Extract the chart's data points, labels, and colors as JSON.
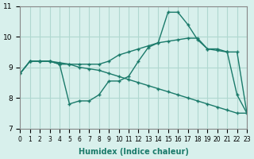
{
  "xlabel": "Humidex (Indice chaleur)",
  "ylabel": "",
  "bg_color": "#d8f0ec",
  "grid_color": "#b0d8d0",
  "line_color": "#1a7a6a",
  "xlim": [
    0,
    23
  ],
  "ylim": [
    7,
    11
  ],
  "yticks": [
    7,
    8,
    9,
    10,
    11
  ],
  "xticks": [
    0,
    1,
    2,
    3,
    4,
    5,
    6,
    7,
    8,
    9,
    10,
    11,
    12,
    13,
    14,
    15,
    16,
    17,
    18,
    19,
    20,
    21,
    22,
    23
  ],
  "line1_x": [
    0,
    1,
    2,
    3,
    4,
    5,
    6,
    7,
    8,
    9,
    10,
    11,
    12,
    13,
    14,
    15,
    16,
    17,
    18,
    19,
    20,
    21,
    22,
    23
  ],
  "line1_y": [
    8.8,
    9.2,
    9.2,
    9.2,
    9.1,
    7.8,
    7.9,
    7.9,
    8.1,
    8.55,
    8.55,
    8.7,
    9.2,
    9.65,
    9.8,
    10.8,
    10.8,
    10.4,
    9.9,
    9.6,
    9.6,
    9.5,
    8.1,
    7.5
  ],
  "line2_x": [
    0,
    1,
    2,
    3,
    4,
    5,
    6,
    7,
    8,
    9,
    10,
    11,
    12,
    13,
    14,
    15,
    16,
    17,
    18,
    19,
    20,
    21,
    22,
    23
  ],
  "line2_y": [
    8.8,
    9.2,
    9.2,
    9.2,
    9.15,
    9.1,
    9.1,
    9.1,
    9.1,
    9.2,
    9.4,
    9.5,
    9.6,
    9.7,
    9.8,
    9.85,
    9.9,
    9.95,
    9.95,
    9.6,
    9.55,
    9.5,
    9.5,
    7.5
  ],
  "line3_x": [
    0,
    1,
    2,
    3,
    4,
    5,
    6,
    7,
    8,
    9,
    10,
    11,
    12,
    13,
    14,
    15,
    16,
    17,
    18,
    19,
    20,
    21,
    22,
    23
  ],
  "line3_y": [
    8.8,
    9.2,
    9.2,
    9.2,
    9.1,
    9.1,
    9.0,
    8.95,
    8.9,
    8.8,
    8.7,
    8.6,
    8.5,
    8.4,
    8.3,
    8.2,
    8.1,
    8.0,
    7.9,
    7.8,
    7.7,
    7.6,
    7.5,
    7.5
  ]
}
